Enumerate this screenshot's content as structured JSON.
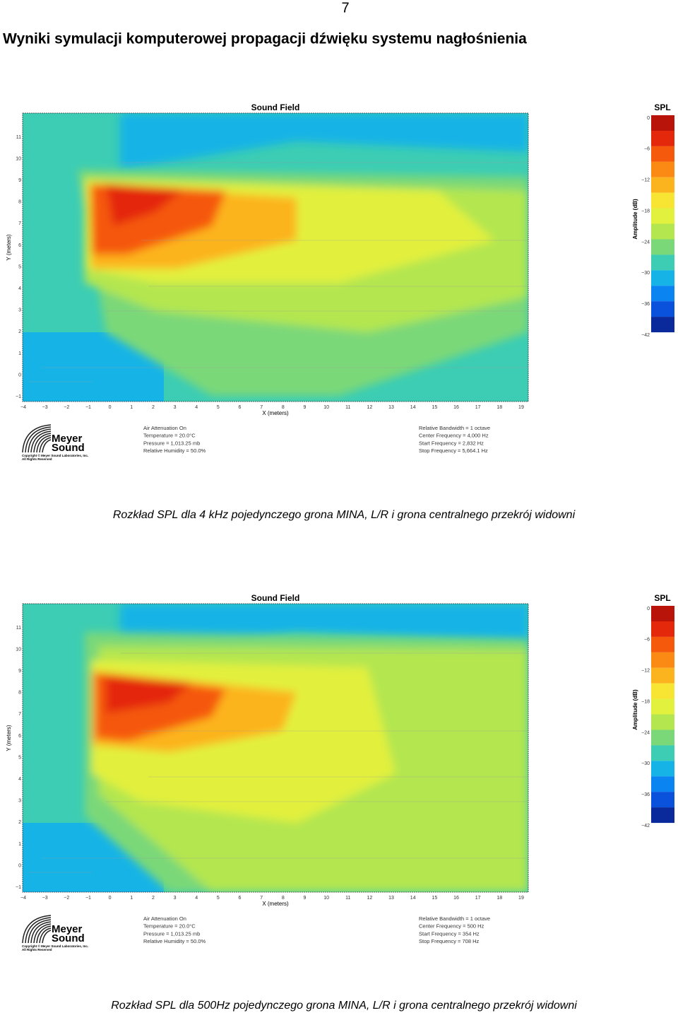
{
  "page_number": "7",
  "heading": "Wyniki symulacji komputerowej propagacji dźwięku systemu nagłośnienia",
  "figures": [
    {
      "title": "Sound Field",
      "legend_title": "SPL",
      "legend_axis_label": "Amplitude (dB)",
      "legend_ticks": [
        "0",
        "−6",
        "−12",
        "−18",
        "−24",
        "−30",
        "−36",
        "−42"
      ],
      "x_axis_label": "X (meters)",
      "y_axis_label": "Y (meters)",
      "x_ticks": [
        "−4",
        "−3",
        "−2",
        "−1",
        "0",
        "1",
        "2",
        "3",
        "4",
        "5",
        "6",
        "7",
        "8",
        "9",
        "10",
        "11",
        "12",
        "13",
        "14",
        "15",
        "16",
        "17",
        "18",
        "19"
      ],
      "y_ticks": [
        "11",
        "10",
        "9",
        "8",
        "7",
        "6",
        "5",
        "4",
        "3",
        "2",
        "1",
        "0",
        "−1"
      ],
      "logo": {
        "line1": "Meyer",
        "line2": "Sound",
        "copyright": "Copyright © Meyer Sound Laboratories, Inc.",
        "rights": "All Rights Reserved"
      },
      "info_left": [
        "Air Attenuation On",
        "Temperature = 20.0°C",
        "Pressure = 1,013.25  mb",
        "Relative Humidity = 50.0%"
      ],
      "info_right": [
        "Relative Bandwidth = 1 octave",
        "Center Frequency = 4,000 Hz",
        "Start Frequency = 2,832 Hz",
        "Stop Frequency = 5,664.1 Hz"
      ],
      "caption": "Rozkład SPL dla 4 kHz pojedynczego grona MINA, L/R i grona centralnego  przekrój widowni"
    },
    {
      "title": "Sound Field",
      "legend_title": "SPL",
      "legend_axis_label": "Amplitude (dB)",
      "legend_ticks": [
        "0",
        "−6",
        "−12",
        "−18",
        "−24",
        "−30",
        "−36",
        "−42"
      ],
      "x_axis_label": "X (meters)",
      "y_axis_label": "Y (meters)",
      "x_ticks": [
        "−4",
        "−3",
        "−2",
        "−1",
        "0",
        "1",
        "2",
        "3",
        "4",
        "5",
        "6",
        "7",
        "8",
        "9",
        "10",
        "11",
        "12",
        "13",
        "14",
        "15",
        "16",
        "17",
        "18",
        "19"
      ],
      "y_ticks": [
        "11",
        "10",
        "9",
        "8",
        "7",
        "6",
        "5",
        "4",
        "3",
        "2",
        "1",
        "0",
        "−1"
      ],
      "logo": {
        "line1": "Meyer",
        "line2": "Sound",
        "copyright": "Copyright © Meyer Sound Laboratories, Inc.",
        "rights": "All Rights Reserved"
      },
      "info_left": [
        "Air Attenuation On",
        "Temperature = 20.0°C",
        "Pressure = 1,013.25  mb",
        "Relative Humidity = 50.0%"
      ],
      "info_right": [
        "Relative Bandwidth = 1 octave",
        "Center Frequency = 500 Hz",
        "Start Frequency = 354 Hz",
        "Stop Frequency = 708 Hz"
      ],
      "caption": "Rozkład SPL dla 500Hz pojedynczego grona MINA, L/R i grona centralnego  przekrój widowni"
    }
  ]
}
